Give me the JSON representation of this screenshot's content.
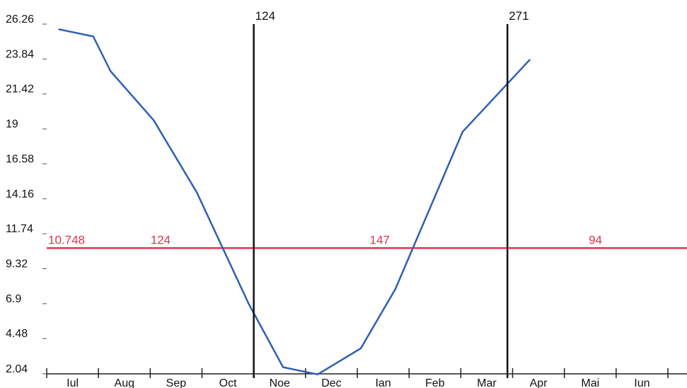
{
  "chart_data": {
    "type": "line",
    "title": "",
    "xlabel": "",
    "ylabel": "",
    "categories": [
      "Iul",
      "Aug",
      "Sep",
      "Oct",
      "Noe",
      "Dec",
      "Ian",
      "Feb",
      "Mar",
      "Apr",
      "Mai",
      "Iun"
    ],
    "x": [
      0,
      30,
      60,
      90,
      120,
      150,
      180,
      210,
      240,
      270,
      300,
      330,
      360
    ],
    "y_ticks": [
      "26.26",
      "23.84",
      "21.42",
      "19",
      "16.58",
      "14.16",
      "11.74",
      "9.32",
      "6.9",
      "4.48",
      "2.04"
    ],
    "ylim": [
      2.04,
      26.26
    ],
    "xlim": [
      0,
      360
    ],
    "grid": false,
    "series": [
      {
        "color": "#2f5fb3",
        "points": [
          [
            7,
            25.9
          ],
          [
            27,
            25.4
          ],
          [
            37,
            23.0
          ],
          [
            62,
            19.6
          ],
          [
            87,
            14.6
          ],
          [
            117,
            6.9
          ],
          [
            137,
            2.5
          ],
          [
            157,
            2.0
          ],
          [
            182,
            3.8
          ],
          [
            202,
            7.9
          ],
          [
            241,
            18.8
          ],
          [
            280,
            23.8
          ]
        ]
      }
    ],
    "threshold": {
      "value": 10.748,
      "label": "10.748",
      "color": "#e0344d",
      "segments": [
        {
          "label": "124",
          "x": 66
        },
        {
          "label": "147",
          "x": 193
        },
        {
          "label": "94",
          "x": 318
        }
      ]
    },
    "markers": [
      {
        "x": 120,
        "label": "124",
        "color": "#111111"
      },
      {
        "x": 267,
        "label": "271",
        "color": "#111111"
      }
    ]
  }
}
